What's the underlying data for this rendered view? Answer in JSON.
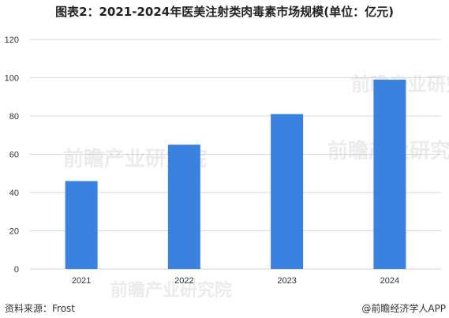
{
  "chart_data": {
    "type": "bar",
    "title": "图表2：2021-2024年医美注射类肉毒素市场规模(单位：亿元)",
    "categories": [
      "2021",
      "2022",
      "2023",
      "2024"
    ],
    "values": [
      46,
      65,
      81,
      99
    ],
    "ylim": [
      0,
      120
    ],
    "yticks": [
      "0",
      "20",
      "40",
      "60",
      "80",
      "100",
      "120"
    ],
    "grid": true,
    "bar_color": "#3b82e0",
    "grid_color": "#d9d9d9"
  },
  "footer": {
    "source": "资料来源：Frost",
    "brand": "@前瞻经济学人APP"
  },
  "watermark": {
    "text": "前瞻产业研究院"
  }
}
